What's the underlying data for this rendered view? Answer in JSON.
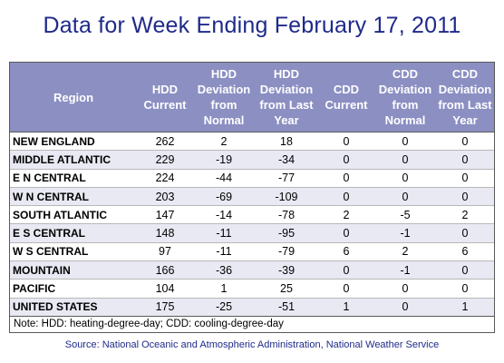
{
  "title": "Data for Week Ending February 17, 2011",
  "chart_data": {
    "type": "table",
    "columns": [
      "Region",
      "HDD Current",
      "HDD Deviation from Normal",
      "HDD Deviation from Last Year",
      "CDD Current",
      "CDD Deviation from Normal",
      "CDD Deviation from Last Year"
    ],
    "rows": [
      [
        "NEW ENGLAND",
        "262",
        "2",
        "18",
        "0",
        "0",
        "0"
      ],
      [
        "MIDDLE ATLANTIC",
        "229",
        "-19",
        "-34",
        "0",
        "0",
        "0"
      ],
      [
        "E N CENTRAL",
        "224",
        "-44",
        "-77",
        "0",
        "0",
        "0"
      ],
      [
        "W N CENTRAL",
        "203",
        "-69",
        "-109",
        "0",
        "0",
        "0"
      ],
      [
        "SOUTH ATLANTIC",
        "147",
        "-14",
        "-78",
        "2",
        "-5",
        "2"
      ],
      [
        "E S CENTRAL",
        "148",
        "-11",
        "-95",
        "0",
        "-1",
        "0"
      ],
      [
        "W S CENTRAL",
        "97",
        "-11",
        "-79",
        "6",
        "2",
        "6"
      ],
      [
        "MOUNTAIN",
        "166",
        "-36",
        "-39",
        "0",
        "-1",
        "0"
      ],
      [
        "PACIFIC",
        "104",
        "1",
        "25",
        "0",
        "0",
        "0"
      ],
      [
        "UNITED STATES",
        "175",
        "-25",
        "-51",
        "1",
        "0",
        "1"
      ]
    ]
  },
  "note": "Note: HDD: heating-degree-day; CDD: cooling-degree-day",
  "source": "Source:  National Oceanic and Atmospheric Administration, National Weather Service",
  "colors": {
    "title": "#1f2a8a",
    "header_bg": "#8b8fc2",
    "header_text": "#ffffff",
    "stripe": "#e8e9f3"
  }
}
